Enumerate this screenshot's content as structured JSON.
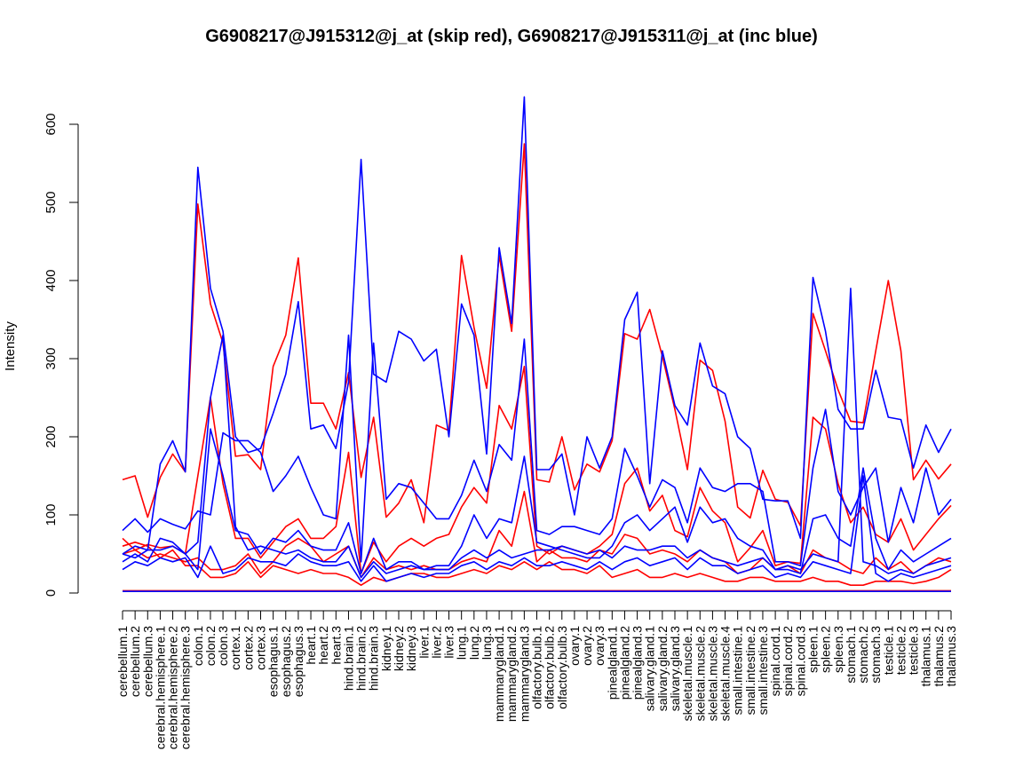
{
  "chart_data": {
    "type": "line",
    "title": "G6908217@J915312@j_at (skip red), G6908217@J915311@j_at (inc blue)",
    "xlabel": "",
    "ylabel": "Intensity",
    "ylim": [
      0,
      600
    ],
    "yticks": [
      0,
      100,
      200,
      300,
      400,
      500,
      600
    ],
    "grid": false,
    "categories": [
      "cerebellum.1",
      "cerebellum.2",
      "cerebellum.3",
      "cerebral.hemisphere.1",
      "cerebral.hemisphere.2",
      "cerebral.hemisphere.3",
      "colon.1",
      "colon.2",
      "colon.3",
      "cortex.1",
      "cortex.2",
      "cortex.3",
      "esophagus.1",
      "esophagus.2",
      "esophagus.3",
      "heart.1",
      "heart.2",
      "heart.3",
      "hind.brain.1",
      "hind.brain.2",
      "hind.brain.3",
      "kidney.1",
      "kidney.2",
      "kidney.3",
      "liver.1",
      "liver.2",
      "liver.3",
      "lung.1",
      "lung.2",
      "lung.3",
      "mammarygland.1",
      "mammarygland.2",
      "mammarygland.3",
      "olfactory.bulb.1",
      "olfactory.bulb.2",
      "olfactory.bulb.3",
      "ovary.1",
      "ovary.2",
      "ovary.3",
      "pinealgland.1",
      "pinealgland.2",
      "pinealgland.3",
      "salivary.gland.1",
      "salivary.gland.2",
      "salivary.gland.3",
      "skeletal.muscle.1",
      "skeletal.muscle.2",
      "skeletal.muscle.3",
      "skeletal.muscle.4",
      "small.intestine.1",
      "small.intestine.2",
      "small.intestine.3",
      "spinal.cord.1",
      "spinal.cord.2",
      "spinal.cord.3",
      "spleen.1",
      "spleen.2",
      "spleen.3",
      "stomach.1",
      "stomach.2",
      "stomach.3",
      "testicle.1",
      "testicle.2",
      "testicle.3",
      "thalamus.1",
      "thalamus.2",
      "thalamus.3"
    ],
    "series": [
      {
        "color": "#ff0000",
        "values": [
          145,
          150,
          97,
          148,
          178,
          155,
          498,
          370,
          320,
          175,
          177,
          158,
          290,
          330,
          429,
          243,
          243,
          210,
          282,
          148,
          225,
          97,
          115,
          145,
          90,
          215,
          208,
          432,
          340,
          262,
          432,
          335,
          575,
          145,
          142,
          200,
          132,
          165,
          155,
          195,
          332,
          325,
          363,
          303,
          235,
          158,
          298,
          285,
          220,
          110,
          96,
          157,
          120,
          116,
          86,
          358,
          310,
          260,
          220,
          218,
          310,
          400,
          310,
          145,
          170,
          146,
          165
        ]
      },
      {
        "color": "#ff0000",
        "values": [
          70,
          55,
          62,
          58,
          60,
          50,
          150,
          250,
          140,
          70,
          70,
          45,
          65,
          85,
          95,
          70,
          70,
          85,
          180,
          25,
          65,
          40,
          60,
          70,
          60,
          70,
          75,
          110,
          135,
          115,
          240,
          210,
          290,
          60,
          50,
          60,
          55,
          50,
          60,
          75,
          140,
          160,
          105,
          125,
          80,
          72,
          135,
          105,
          90,
          40,
          58,
          80,
          35,
          40,
          38,
          225,
          210,
          140,
          90,
          110,
          75,
          65,
          95,
          55,
          75,
          95,
          112
        ]
      },
      {
        "color": "#ff0000",
        "values": [
          50,
          55,
          45,
          50,
          45,
          40,
          45,
          30,
          30,
          35,
          50,
          25,
          40,
          60,
          70,
          60,
          40,
          50,
          60,
          20,
          45,
          30,
          35,
          30,
          35,
          30,
          30,
          40,
          45,
          40,
          80,
          60,
          130,
          40,
          55,
          45,
          45,
          40,
          55,
          50,
          75,
          70,
          50,
          55,
          50,
          40,
          55,
          45,
          40,
          25,
          30,
          45,
          30,
          35,
          25,
          55,
          45,
          40,
          30,
          25,
          45,
          30,
          40,
          25,
          35,
          45,
          40
        ]
      },
      {
        "color": "#ff0000",
        "values": [
          60,
          65,
          60,
          45,
          55,
          35,
          35,
          20,
          20,
          25,
          40,
          20,
          35,
          30,
          25,
          30,
          25,
          25,
          20,
          10,
          20,
          15,
          20,
          25,
          25,
          20,
          20,
          25,
          30,
          25,
          35,
          30,
          40,
          30,
          40,
          30,
          30,
          25,
          35,
          20,
          25,
          30,
          20,
          20,
          25,
          20,
          25,
          20,
          15,
          15,
          20,
          20,
          15,
          15,
          15,
          20,
          15,
          15,
          10,
          10,
          15,
          15,
          15,
          12,
          15,
          20,
          30
        ]
      },
      {
        "color": "#ff0000",
        "values": [
          3,
          3,
          3,
          3,
          3,
          3,
          3,
          3,
          3,
          3,
          3,
          3,
          3,
          3,
          3,
          3,
          3,
          3,
          3,
          3,
          3,
          3,
          3,
          3,
          3,
          3,
          3,
          3,
          3,
          3,
          3,
          3,
          3,
          3,
          3,
          3,
          3,
          3,
          3,
          3,
          3,
          3,
          3,
          3,
          3,
          3,
          3,
          3,
          3,
          3,
          3,
          3,
          3,
          3,
          3,
          3,
          3,
          3,
          3,
          3,
          3,
          3,
          3,
          3,
          3,
          3,
          3
        ]
      },
      {
        "color": "#0000ff",
        "values": [
          50,
          60,
          55,
          165,
          195,
          155,
          545,
          390,
          335,
          200,
          180,
          185,
          230,
          280,
          373,
          210,
          215,
          185,
          270,
          555,
          280,
          270,
          335,
          325,
          297,
          312,
          200,
          370,
          330,
          178,
          442,
          345,
          635,
          158,
          158,
          178,
          100,
          200,
          160,
          200,
          350,
          385,
          140,
          310,
          240,
          215,
          320,
          265,
          255,
          200,
          185,
          120,
          118,
          118,
          70,
          404,
          335,
          235,
          210,
          210,
          285,
          225,
          222,
          160,
          215,
          180,
          210
        ]
      },
      {
        "color": "#0000ff",
        "values": [
          80,
          95,
          78,
          95,
          88,
          82,
          105,
          100,
          205,
          195,
          195,
          180,
          130,
          150,
          175,
          135,
          100,
          95,
          330,
          40,
          320,
          120,
          140,
          135,
          115,
          95,
          95,
          125,
          170,
          130,
          190,
          170,
          325,
          80,
          75,
          85,
          85,
          80,
          75,
          95,
          185,
          150,
          110,
          145,
          135,
          90,
          160,
          135,
          130,
          140,
          140,
          130,
          40,
          40,
          35,
          160,
          235,
          130,
          100,
          135,
          160,
          65,
          135,
          90,
          160,
          100,
          120
        ]
      },
      {
        "color": "#0000ff",
        "values": [
          40,
          50,
          40,
          70,
          65,
          50,
          30,
          210,
          150,
          80,
          75,
          50,
          70,
          65,
          80,
          60,
          55,
          55,
          90,
          25,
          70,
          30,
          40,
          40,
          30,
          35,
          35,
          60,
          100,
          70,
          95,
          90,
          175,
          65,
          60,
          55,
          50,
          45,
          45,
          60,
          90,
          100,
          80,
          95,
          110,
          65,
          110,
          90,
          95,
          70,
          60,
          55,
          30,
          30,
          25,
          95,
          100,
          70,
          60,
          160,
          70,
          30,
          55,
          40,
          50,
          60,
          70
        ]
      },
      {
        "color": "#0000ff",
        "values": [
          30,
          40,
          35,
          45,
          40,
          45,
          20,
          60,
          25,
          30,
          45,
          40,
          40,
          35,
          50,
          40,
          35,
          35,
          40,
          15,
          35,
          15,
          20,
          25,
          20,
          25,
          25,
          35,
          40,
          30,
          40,
          35,
          45,
          35,
          35,
          40,
          35,
          30,
          40,
          30,
          40,
          45,
          35,
          40,
          45,
          30,
          45,
          35,
          35,
          25,
          30,
          35,
          20,
          25,
          20,
          40,
          35,
          30,
          25,
          150,
          25,
          15,
          25,
          20,
          25,
          30,
          35
        ]
      },
      {
        "color": "#0000ff",
        "values": [
          50,
          45,
          55,
          55,
          60,
          50,
          65,
          250,
          330,
          85,
          55,
          60,
          55,
          50,
          55,
          45,
          40,
          40,
          60,
          20,
          40,
          25,
          30,
          35,
          30,
          30,
          30,
          45,
          55,
          45,
          55,
          45,
          50,
          55,
          55,
          60,
          55,
          50,
          55,
          45,
          60,
          55,
          55,
          60,
          60,
          45,
          55,
          45,
          40,
          35,
          40,
          45,
          30,
          35,
          30,
          50,
          45,
          40,
          390,
          40,
          35,
          25,
          30,
          25,
          35,
          40,
          45
        ]
      },
      {
        "color": "#0000ff",
        "values": [
          2,
          2,
          2,
          2,
          2,
          2,
          2,
          2,
          2,
          2,
          2,
          2,
          2,
          2,
          2,
          2,
          2,
          2,
          2,
          2,
          2,
          2,
          2,
          2,
          2,
          2,
          2,
          2,
          2,
          2,
          2,
          2,
          2,
          2,
          2,
          2,
          2,
          2,
          2,
          2,
          2,
          2,
          2,
          2,
          2,
          2,
          2,
          2,
          2,
          2,
          2,
          2,
          2,
          2,
          2,
          2,
          2,
          2,
          2,
          2,
          2,
          2,
          2,
          2,
          2,
          2,
          2
        ]
      }
    ]
  }
}
